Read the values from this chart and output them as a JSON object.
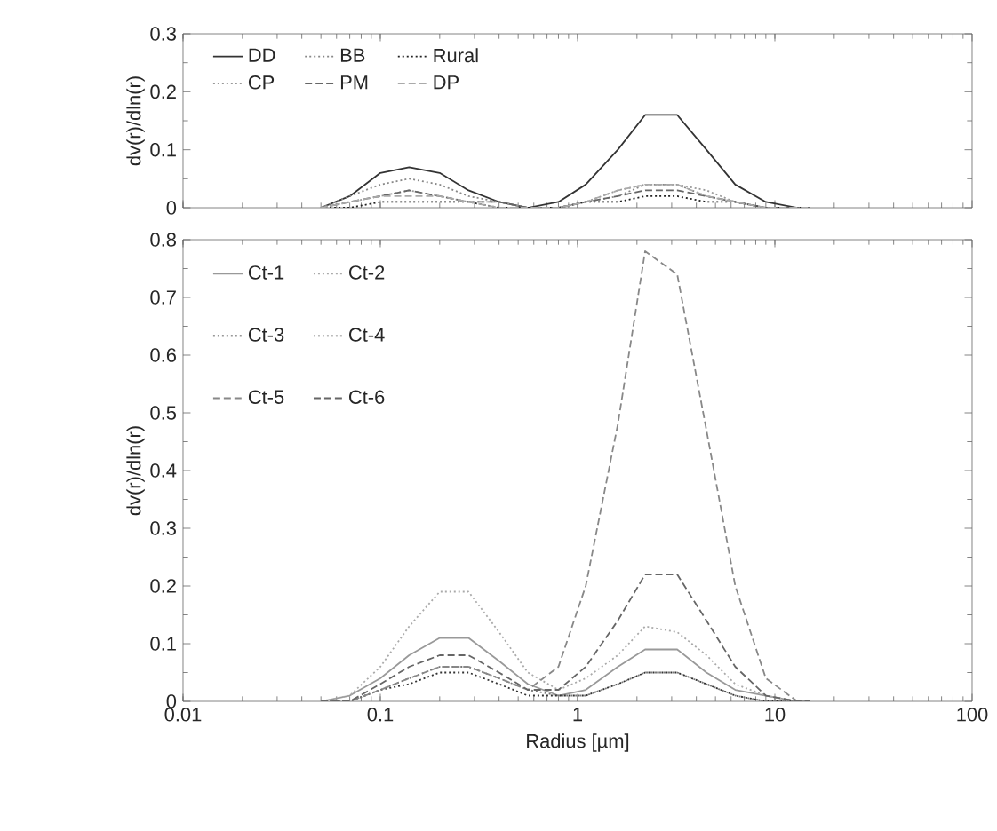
{
  "chart_data": [
    {
      "type": "line",
      "ylabel": "dv(r)/dln(r)",
      "log": "x",
      "xlim": [
        0.01,
        100
      ],
      "xticks": [
        0.01,
        0.1,
        1,
        10,
        100
      ],
      "ylim": [
        0,
        0.3
      ],
      "yticks": [
        0,
        0.1,
        0.2,
        0.3
      ],
      "tick_labels": "y",
      "legend": "top left",
      "grid": false,
      "x": [
        0.05,
        0.07,
        0.1,
        0.14,
        0.2,
        0.28,
        0.4,
        0.56,
        0.8,
        1.1,
        1.6,
        2.2,
        3.2,
        4.5,
        6.3,
        9,
        13,
        15
      ],
      "series": [
        {
          "name": "DD",
          "color": "#333333",
          "line_style": "solid",
          "values": [
            0,
            0.02,
            0.06,
            0.07,
            0.06,
            0.03,
            0.01,
            0,
            0.01,
            0.04,
            0.1,
            0.16,
            0.16,
            0.1,
            0.04,
            0.01,
            0,
            0
          ]
        },
        {
          "name": "BB",
          "color": "#888888",
          "line_style": "dotted",
          "values": [
            0,
            0.02,
            0.04,
            0.05,
            0.04,
            0.02,
            0.01,
            0,
            0,
            0.01,
            0.02,
            0.04,
            0.04,
            0.02,
            0.01,
            0,
            0,
            0
          ]
        },
        {
          "name": "Rural",
          "color": "#222222",
          "line_style": "dotted",
          "values": [
            0,
            0,
            0.01,
            0.01,
            0.01,
            0.01,
            0,
            0,
            0,
            0.01,
            0.01,
            0.02,
            0.02,
            0.01,
            0.01,
            0,
            0,
            0
          ]
        },
        {
          "name": "CP",
          "color": "#999999",
          "line_style": "dotted",
          "values": [
            0,
            0.01,
            0.02,
            0.03,
            0.02,
            0.01,
            0.01,
            0,
            0,
            0.01,
            0.03,
            0.04,
            0.04,
            0.03,
            0.01,
            0,
            0,
            0
          ]
        },
        {
          "name": "PM",
          "color": "#666666",
          "line_style": "dashed",
          "values": [
            0,
            0.01,
            0.02,
            0.03,
            0.02,
            0.01,
            0.01,
            0,
            0,
            0.01,
            0.02,
            0.03,
            0.03,
            0.02,
            0.01,
            0,
            0,
            0
          ]
        },
        {
          "name": "DP",
          "color": "#aaaaaa",
          "line_style": "dashed",
          "values": [
            0,
            0.01,
            0.02,
            0.02,
            0.02,
            0.01,
            0,
            0,
            0,
            0.01,
            0.03,
            0.04,
            0.04,
            0.02,
            0.01,
            0,
            0,
            0
          ]
        }
      ]
    },
    {
      "type": "line",
      "xlabel": "Radius [µm]",
      "ylabel": "dv(r)/dln(r)",
      "log": "x",
      "xlim": [
        0.01,
        100
      ],
      "xticks": [
        0.01,
        0.1,
        1,
        10,
        100
      ],
      "ylim": [
        0,
        0.8
      ],
      "yticks": [
        0,
        0.1,
        0.2,
        0.3,
        0.4,
        0.5,
        0.6,
        0.7,
        0.8
      ],
      "legend": "top left",
      "grid": false,
      "x": [
        0.05,
        0.07,
        0.1,
        0.14,
        0.2,
        0.28,
        0.4,
        0.56,
        0.8,
        1.1,
        1.6,
        2.2,
        3.2,
        4.5,
        6.3,
        9,
        13,
        15
      ],
      "series": [
        {
          "name": "Ct-1",
          "color": "#999999",
          "line_style": "solid",
          "values": [
            0,
            0.01,
            0.04,
            0.08,
            0.11,
            0.11,
            0.07,
            0.03,
            0.01,
            0.02,
            0.06,
            0.09,
            0.09,
            0.05,
            0.02,
            0.01,
            0,
            0
          ]
        },
        {
          "name": "Ct-2",
          "color": "#aaaaaa",
          "line_style": "dotted",
          "values": [
            0,
            0.01,
            0.06,
            0.13,
            0.19,
            0.19,
            0.12,
            0.05,
            0.02,
            0.04,
            0.08,
            0.13,
            0.12,
            0.08,
            0.03,
            0.01,
            0,
            0
          ]
        },
        {
          "name": "Ct-3",
          "color": "#333333",
          "line_style": "dotted",
          "values": [
            0,
            0,
            0.02,
            0.03,
            0.05,
            0.05,
            0.03,
            0.01,
            0.01,
            0.01,
            0.03,
            0.05,
            0.05,
            0.03,
            0.01,
            0,
            0,
            0
          ]
        },
        {
          "name": "Ct-4",
          "color": "#777777",
          "line_style": "dotted",
          "values": [
            0,
            0,
            0.02,
            0.04,
            0.06,
            0.06,
            0.04,
            0.02,
            0.01,
            0.01,
            0.03,
            0.05,
            0.05,
            0.03,
            0.01,
            0,
            0,
            0
          ]
        },
        {
          "name": "Ct-5",
          "color": "#888888",
          "line_style": "dashed",
          "values": [
            0,
            0,
            0.02,
            0.04,
            0.06,
            0.06,
            0.04,
            0.02,
            0.06,
            0.2,
            0.48,
            0.78,
            0.74,
            0.47,
            0.2,
            0.04,
            0,
            0
          ]
        },
        {
          "name": "Ct-6",
          "color": "#666666",
          "line_style": "dashed",
          "values": [
            0,
            0,
            0.03,
            0.06,
            0.08,
            0.08,
            0.05,
            0.02,
            0.02,
            0.06,
            0.14,
            0.22,
            0.22,
            0.14,
            0.06,
            0.01,
            0,
            0
          ]
        }
      ]
    }
  ]
}
